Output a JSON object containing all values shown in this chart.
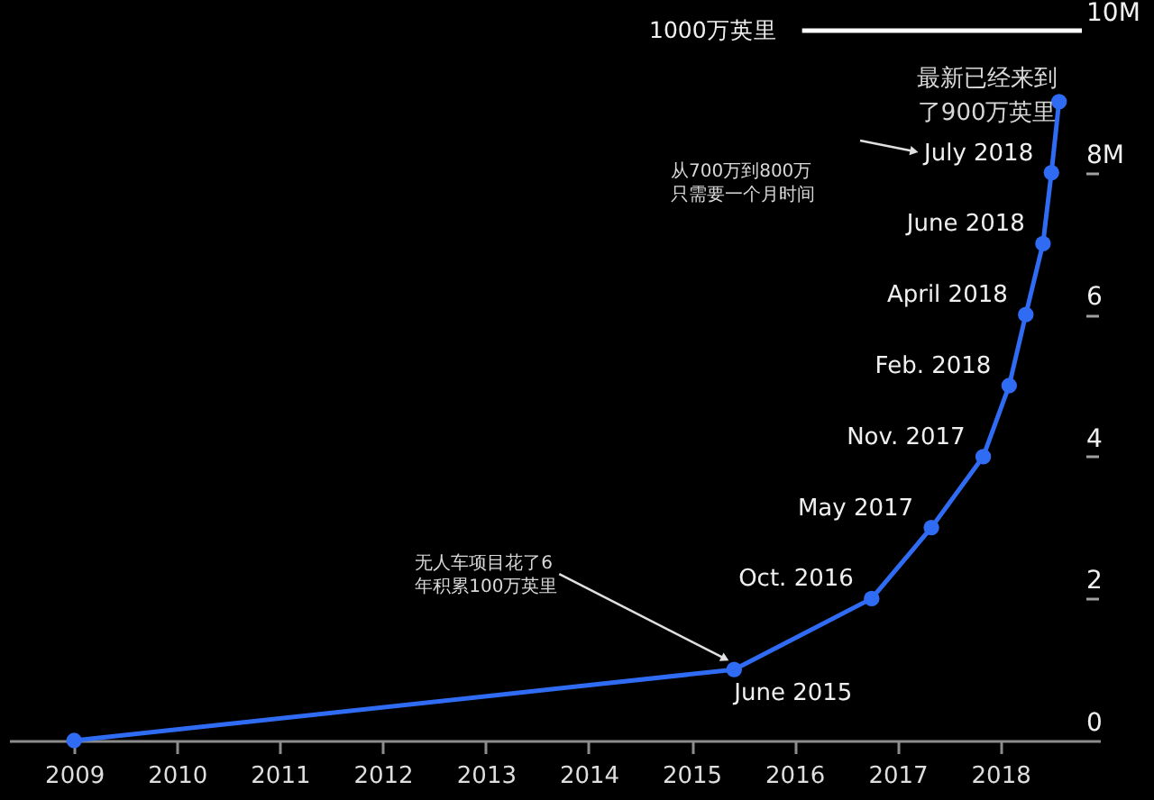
{
  "chart_data": {
    "type": "line",
    "color": "#2f6cf3",
    "marker": "circle",
    "x": [
      "2009-01",
      "2015-06",
      "2016-10",
      "2017-05",
      "2017-11",
      "2018-02",
      "2018-04",
      "2018-06",
      "2018-07",
      "2018-07-28"
    ],
    "values": [
      0,
      1,
      2,
      3,
      4,
      5,
      6,
      7,
      8,
      9
    ],
    "value_labels": [
      null,
      "June 2015",
      "Oct. 2016",
      "May 2017",
      "Nov. 2017",
      "Feb. 2018",
      "April 2018",
      "June 2018",
      "July 2018",
      null
    ],
    "xlim": [
      "2008-05-15",
      "2018-12-20"
    ],
    "xticks": [
      "2009",
      "2010",
      "2011",
      "2012",
      "2013",
      "2014",
      "2015",
      "2016",
      "2017",
      "2018"
    ],
    "ylim": [
      0,
      10
    ],
    "yticks": [
      0,
      2,
      4,
      6,
      {
        "value": 8,
        "label": "8M"
      },
      {
        "value": 10,
        "label": "10M"
      }
    ],
    "ref_lines": [
      {
        "axis": "y",
        "value": 10,
        "label": "1000万英里",
        "color": "#ffffff"
      }
    ],
    "annotations": [
      {
        "text": "无人车项目花了6年积累100万英里",
        "x": "2015-06",
        "y": 1
      },
      "从700万到800万只需要一个月时间",
      {
        "text": "最新已经来到了900万英里",
        "x": "2018-07-28",
        "y": 9
      }
    ]
  }
}
